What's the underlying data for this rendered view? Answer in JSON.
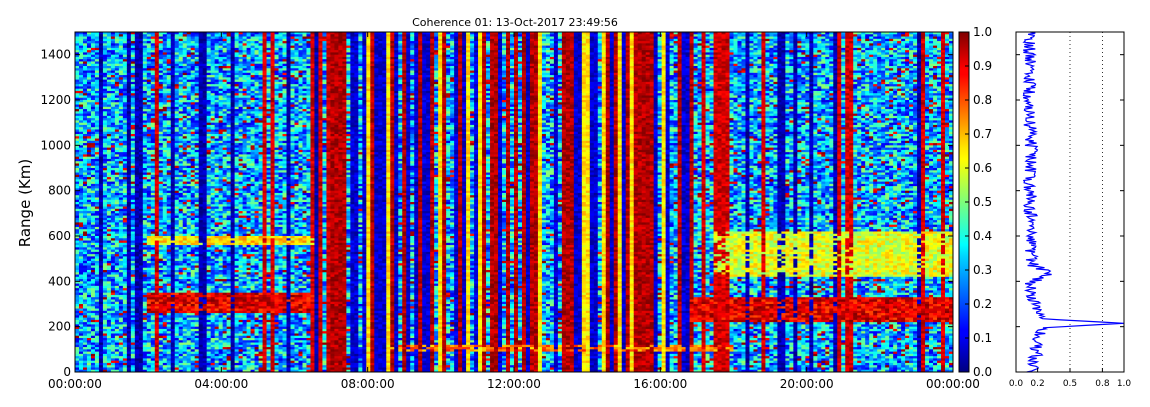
{
  "chart_data": [
    {
      "type": "heatmap",
      "title": "Coherence 01: 13-Oct-2017 23:49:56",
      "xlabel": "",
      "ylabel": "Range (Km)",
      "x_ticks": [
        "00:00:00",
        "04:00:00",
        "08:00:00",
        "12:00:00",
        "16:00:00",
        "20:00:00",
        "00:00:00"
      ],
      "x_range_hours": [
        0,
        24
      ],
      "y_ticks": [
        0,
        200,
        400,
        600,
        800,
        1000,
        1200,
        1400
      ],
      "ylim": [
        0,
        1500
      ],
      "colormap": "jet",
      "colorbar": {
        "range": [
          0,
          1.0
        ],
        "ticks": [
          "0.0",
          "0.1",
          "0.2",
          "0.3",
          "0.4",
          "0.5",
          "0.6",
          "0.7",
          "0.8",
          "0.9",
          "1.0"
        ]
      },
      "grid": false,
      "features": [
        {
          "description": "high coherence echo layer",
          "x_hours": [
            2.0,
            6.5
          ],
          "y_km": [
            260,
            350
          ],
          "value": 0.9
        },
        {
          "description": "moderate echo layer",
          "x_hours": [
            2.0,
            6.5
          ],
          "y_km": [
            560,
            600
          ],
          "value": 0.65
        },
        {
          "description": "high coherence echo layer",
          "x_hours": [
            16.8,
            24.0
          ],
          "y_km": [
            220,
            330
          ],
          "value": 0.9
        },
        {
          "description": "moderate echo layer",
          "x_hours": [
            17.5,
            24.0
          ],
          "y_km": [
            420,
            620
          ],
          "value": 0.6
        },
        {
          "description": "low altitude echo band",
          "x_hours": [
            8.5,
            18.0
          ],
          "y_km": [
            90,
            120
          ],
          "value": 0.75
        }
      ]
    },
    {
      "type": "line",
      "xlabel": "",
      "ylabel": "",
      "xlim": [
        0.0,
        1.0
      ],
      "x_ticks": [
        "0.0",
        "0.2",
        "0.5",
        "0.8",
        "1.0"
      ],
      "ylim": [
        0,
        1500
      ],
      "grid": "vertical dotted",
      "profile": [
        {
          "range_km": 0,
          "value": 0.15
        },
        {
          "range_km": 60,
          "value": 0.18
        },
        {
          "range_km": 130,
          "value": 0.2
        },
        {
          "range_km": 195,
          "value": 0.25
        },
        {
          "range_km": 215,
          "value": 1.0
        },
        {
          "range_km": 235,
          "value": 0.22
        },
        {
          "range_km": 300,
          "value": 0.18
        },
        {
          "range_km": 390,
          "value": 0.12
        },
        {
          "range_km": 440,
          "value": 0.32
        },
        {
          "range_km": 470,
          "value": 0.15
        },
        {
          "range_km": 600,
          "value": 0.14
        },
        {
          "range_km": 800,
          "value": 0.13
        },
        {
          "range_km": 1000,
          "value": 0.14
        },
        {
          "range_km": 1150,
          "value": 0.12
        },
        {
          "range_km": 1260,
          "value": 0.13
        },
        {
          "range_km": 1400,
          "value": 0.12
        },
        {
          "range_km": 1500,
          "value": 0.13
        }
      ]
    }
  ]
}
